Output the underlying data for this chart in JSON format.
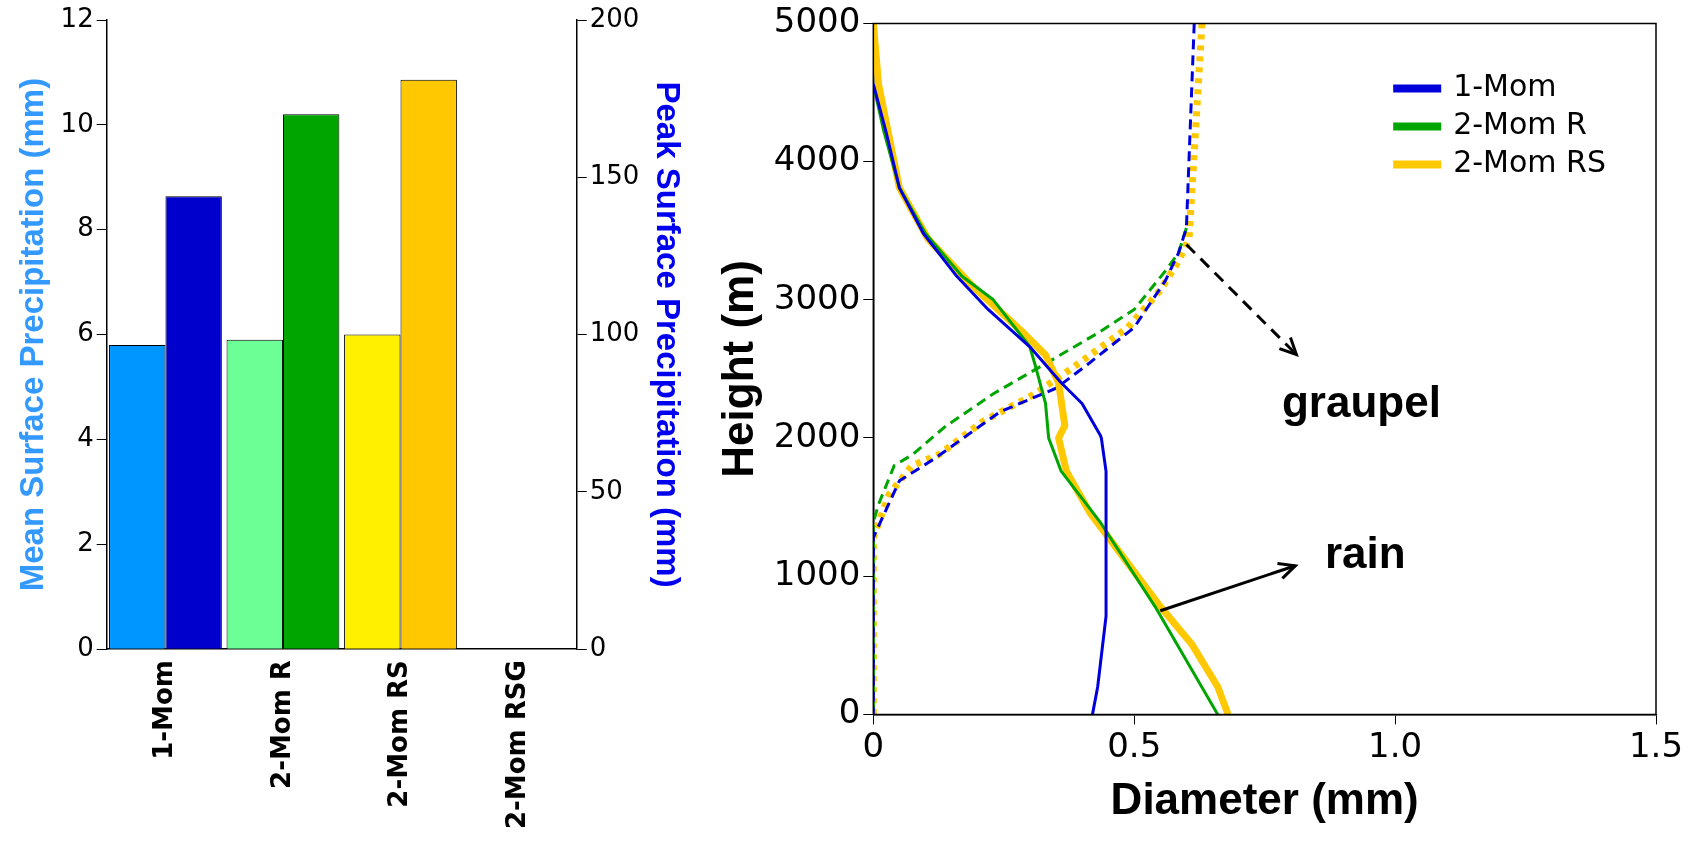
{
  "chart_data": [
    {
      "type": "bar",
      "ylabel": "Mean Surface Precipitation (mm)",
      "y2label": "Peak Surface Precipitation (mm)",
      "categories": [
        "1-Mom",
        "2-Mom R",
        "2-Mom RS",
        "2-Mom RSG"
      ],
      "series": [
        {
          "colors": [
            "#0096ff",
            "#6cff96",
            "#fff000",
            "#ffffff"
          ],
          "values": [
            5.8,
            5.9,
            6.0,
            null
          ]
        },
        {
          "colors": [
            "#0000cc",
            "#00a500",
            "#ffc800",
            "#ffffff"
          ],
          "values": [
            144,
            170,
            181,
            null
          ],
          "axis": "y2"
        }
      ],
      "ylim": [
        0,
        12
      ],
      "yticks": [
        0,
        2,
        4,
        6,
        8,
        10,
        12
      ],
      "y2lim": [
        0,
        200
      ],
      "y2ticks": [
        0,
        50,
        100,
        150,
        200
      ]
    },
    {
      "type": "line",
      "xlabel": "Diameter (mm)",
      "ylabel": "Height (m)",
      "legend": "top right",
      "xlim": [
        0,
        1.5
      ],
      "xticks": [
        0,
        0.5,
        {
          "value": 1,
          "label": "1.0"
        },
        1.5
      ],
      "ylim": [
        0,
        5000
      ],
      "yticks": [
        0,
        1000,
        2000,
        3000,
        4000,
        5000
      ],
      "series": [
        {
          "name": "1-Mom",
          "color": "#0000dd",
          "line_style": "solid",
          "x": [
            0,
            0.024,
            0.05,
            0.096,
            0.16,
            0.22,
            0.3,
            0.36,
            0.4,
            0.435,
            0.437,
            0.446,
            0.446,
            0.43,
            0.42
          ],
          "values": [
            4560,
            4220,
            3810,
            3480,
            3170,
            2930,
            2660,
            2400,
            2250,
            2020,
            2000,
            1760,
            710,
            200,
            0
          ]
        },
        {
          "name": "2-Mom R",
          "color": "#00a500",
          "line_style": "solid",
          "x": [
            0,
            0.02,
            0.05,
            0.1,
            0.17,
            0.23,
            0.3,
            0.31,
            0.33,
            0.336,
            0.36,
            0.435,
            0.54,
            0.66
          ],
          "values": [
            4560,
            4220,
            3810,
            3480,
            3170,
            3000,
            2660,
            2530,
            2250,
            2000,
            1760,
            1390,
            780,
            0
          ]
        },
        {
          "name": "2-Mom RS",
          "color": "#ffc800",
          "line_style": "solid",
          "x": [
            0,
            0.01,
            0.05,
            0.105,
            0.19,
            0.285,
            0.33,
            0.355,
            0.367,
            0.355,
            0.37,
            0.415,
            0.55,
            0.61,
            0.66,
            0.68
          ],
          "values": [
            5000,
            4560,
            3810,
            3440,
            3100,
            2770,
            2600,
            2400,
            2090,
            2000,
            1760,
            1460,
            780,
            510,
            200,
            0
          ]
        },
        {
          "color": "#0000dd",
          "line_style": "dashed",
          "x": [
            0.615,
            0.6,
            0.585,
            0.56,
            0.5,
            0.41,
            0.35,
            0.243,
            0.117,
            0.05,
            0,
            0
          ],
          "values": [
            5000,
            3520,
            3340,
            3140,
            2800,
            2530,
            2360,
            2190,
            1850,
            1690,
            1280,
            0
          ]
        },
        {
          "color": "#00a500",
          "line_style": "dashed",
          "x": [
            0.6,
            0.585,
            0.56,
            0.5,
            0.435,
            0.34,
            0.23,
            0.137,
            0.075,
            0.04,
            0.01,
            0,
            0
          ],
          "values": [
            3520,
            3340,
            3210,
            2930,
            2770,
            2560,
            2320,
            2080,
            1880,
            1800,
            1520,
            1390,
            0
          ]
        },
        {
          "color": "#ffc800",
          "line_style": "dotted",
          "x": [
            0.63,
            0.605,
            0.585,
            0.55,
            0.488,
            0.39,
            0.31,
            0.21,
            0.126,
            0.074,
            0.03,
            0,
            0
          ],
          "values": [
            5000,
            3440,
            3280,
            3070,
            2800,
            2530,
            2320,
            2120,
            1880,
            1800,
            1590,
            1280,
            0
          ]
        }
      ],
      "annotations": [
        {
          "text": "graupel",
          "x": 0.6,
          "y": 3400
        },
        {
          "text": "rain",
          "x": 0.55,
          "y": 750
        }
      ]
    }
  ]
}
